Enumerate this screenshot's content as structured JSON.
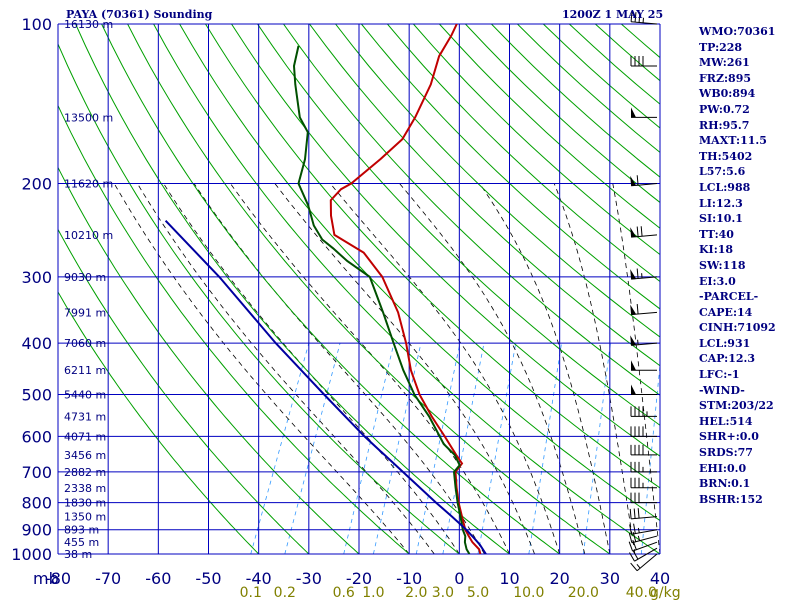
{
  "header": {
    "title": "PAYA (70361) Sounding",
    "datetime": "1200Z  1 MAY 25"
  },
  "indices": [
    "WMO:70361",
    "TP:228",
    "MW:261",
    "FRZ:895",
    "WB0:894",
    "PW:0.72",
    "RH:95.7",
    "MAXT:11.5",
    "TH:5402",
    "L57:5.6",
    "LCL:988",
    "LI:12.3",
    "SI:10.1",
    "TT:40",
    "KI:18",
    "SW:118",
    "EI:3.0",
    "-PARCEL-",
    "CAPE:14",
    "CINH:71092",
    "LCL:931",
    "CAP:12.3",
    "LFC:-1",
    "-WIND-",
    "STM:203/22",
    "HEL:514",
    "SHR+:0.0",
    "SRDS:77",
    "EHI:0.0",
    "BRN:0.1",
    "BSHR:152"
  ],
  "colors": {
    "grid": "#0000c0",
    "dry_adiabat": "#00a000",
    "moist_adiabat": "#000000",
    "mixing_ratio": "#3399ff",
    "temperature": "#c00000",
    "dewpoint": "#005000",
    "parcel": "#0000a0",
    "label": "#000080",
    "mixing_label": "#808000"
  },
  "chart_data": {
    "type": "line",
    "x_unit_label": "mb",
    "mixing_unit_label": "g/kg",
    "pressure_levels": [
      100,
      200,
      300,
      400,
      500,
      600,
      700,
      800,
      900,
      1000
    ],
    "pressure_range": [
      100,
      1000
    ],
    "temperature_ticks": [
      -80,
      -70,
      -60,
      -50,
      -40,
      -30,
      -20,
      -10,
      0,
      10,
      20,
      30,
      40
    ],
    "temperature_range": [
      -80,
      40
    ],
    "height_labels": [
      {
        "p": 100,
        "label": "16130 m"
      },
      {
        "p": 150,
        "label": "13500 m"
      },
      {
        "p": 200,
        "label": "11620 m"
      },
      {
        "p": 250,
        "label": "10210 m"
      },
      {
        "p": 300,
        "label": "9030 m"
      },
      {
        "p": 350,
        "label": "7991 m"
      },
      {
        "p": 400,
        "label": "7060 m"
      },
      {
        "p": 450,
        "label": "6211 m"
      },
      {
        "p": 500,
        "label": "5440 m"
      },
      {
        "p": 550,
        "label": "4731 m"
      },
      {
        "p": 600,
        "label": "4071 m"
      },
      {
        "p": 650,
        "label": "3456 m"
      },
      {
        "p": 700,
        "label": "2882 m"
      },
      {
        "p": 750,
        "label": "2338 m"
      },
      {
        "p": 800,
        "label": "1830 m"
      },
      {
        "p": 850,
        "label": "1350 m"
      },
      {
        "p": 900,
        "label": "893 m"
      },
      {
        "p": 950,
        "label": "455 m"
      },
      {
        "p": 1000,
        "label": "38 m"
      }
    ],
    "mixing_ratio_labels": [
      "0.1",
      "0.2",
      "0.6",
      "1.0",
      "2.0",
      "3.0",
      "5.0",
      "10.0",
      "20.0",
      "40.0"
    ],
    "mixing_ratio_values": [
      0.1,
      0.2,
      0.6,
      1.0,
      2.0,
      3.0,
      5.0,
      10.0,
      20.0,
      40.0
    ],
    "series": [
      {
        "key": "temperature",
        "points": [
          [
            1000,
            4.2
          ],
          [
            980,
            3.5
          ],
          [
            950,
            1.5
          ],
          [
            925,
            0.2
          ],
          [
            900,
            -1.1
          ],
          [
            850,
            -3.0
          ],
          [
            800,
            -5.0
          ],
          [
            750,
            -6.8
          ],
          [
            700,
            -8.5
          ],
          [
            675,
            -8.0
          ],
          [
            650,
            -10.0
          ],
          [
            600,
            -14.0
          ],
          [
            550,
            -18.5
          ],
          [
            500,
            -23.0
          ],
          [
            450,
            -27.0
          ],
          [
            400,
            -30.5
          ],
          [
            350,
            -35.0
          ],
          [
            300,
            -41.5
          ],
          [
            270,
            -47.5
          ],
          [
            250,
            -55.0
          ],
          [
            230,
            -57.5
          ],
          [
            215,
            -59.0
          ],
          [
            205,
            -58.0
          ],
          [
            200,
            -56.5
          ],
          [
            180,
            -53.0
          ],
          [
            165,
            -50.5
          ],
          [
            150,
            -50.0
          ],
          [
            130,
            -50.0
          ],
          [
            115,
            -51.0
          ],
          [
            105,
            -50.5
          ],
          [
            100,
            -50.5
          ]
        ]
      },
      {
        "key": "dewpoint",
        "points": [
          [
            1000,
            2.0
          ],
          [
            980,
            1.0
          ],
          [
            950,
            0.0
          ],
          [
            925,
            -0.5
          ],
          [
            900,
            -1.6
          ],
          [
            850,
            -3.3
          ],
          [
            800,
            -5.2
          ],
          [
            750,
            -7.0
          ],
          [
            700,
            -8.8
          ],
          [
            680,
            -8.3
          ],
          [
            650,
            -10.3
          ],
          [
            620,
            -13.5
          ],
          [
            600,
            -15.0
          ],
          [
            550,
            -19.0
          ],
          [
            500,
            -24.0
          ],
          [
            450,
            -28.5
          ],
          [
            400,
            -33.0
          ],
          [
            350,
            -38.0
          ],
          [
            300,
            -44.0
          ],
          [
            280,
            -50.0
          ],
          [
            265,
            -54.0
          ],
          [
            255,
            -57.0
          ],
          [
            240,
            -60.0
          ],
          [
            220,
            -63.0
          ],
          [
            200,
            -67.0
          ],
          [
            180,
            -68.0
          ],
          [
            160,
            -70.0
          ],
          [
            150,
            -73.0
          ],
          [
            130,
            -77.0
          ],
          [
            120,
            -79.0
          ],
          [
            110,
            -80.0
          ]
        ]
      },
      {
        "key": "parcel",
        "points": [
          [
            1000,
            5.3
          ],
          [
            960,
            3.2
          ],
          [
            940,
            1.9
          ],
          [
            900,
            -0.9
          ],
          [
            850,
            -5.0
          ],
          [
            800,
            -9.5
          ],
          [
            700,
            -19.0
          ],
          [
            600,
            -30.0
          ],
          [
            500,
            -42.0
          ],
          [
            400,
            -56.5
          ],
          [
            300,
            -74.0
          ],
          [
            235,
            -90.0
          ]
        ]
      }
    ],
    "wind_barbs": [
      {
        "p": 1000,
        "dir": 230,
        "spd": 15
      },
      {
        "p": 975,
        "dir": 240,
        "spd": 20
      },
      {
        "p": 950,
        "dir": 250,
        "spd": 20
      },
      {
        "p": 925,
        "dir": 255,
        "spd": 25
      },
      {
        "p": 900,
        "dir": 260,
        "spd": 25
      },
      {
        "p": 850,
        "dir": 265,
        "spd": 30
      },
      {
        "p": 800,
        "dir": 270,
        "spd": 30
      },
      {
        "p": 750,
        "dir": 270,
        "spd": 35
      },
      {
        "p": 700,
        "dir": 270,
        "spd": 35
      },
      {
        "p": 650,
        "dir": 270,
        "spd": 40
      },
      {
        "p": 600,
        "dir": 270,
        "spd": 40
      },
      {
        "p": 550,
        "dir": 270,
        "spd": 45
      },
      {
        "p": 500,
        "dir": 270,
        "spd": 50
      },
      {
        "p": 450,
        "dir": 270,
        "spd": 50
      },
      {
        "p": 400,
        "dir": 265,
        "spd": 55
      },
      {
        "p": 350,
        "dir": 265,
        "spd": 60
      },
      {
        "p": 300,
        "dir": 265,
        "spd": 65
      },
      {
        "p": 250,
        "dir": 265,
        "spd": 70
      },
      {
        "p": 200,
        "dir": 265,
        "spd": 60
      },
      {
        "p": 150,
        "dir": 270,
        "spd": 50
      },
      {
        "p": 120,
        "dir": 270,
        "spd": 40
      },
      {
        "p": 100,
        "dir": 275,
        "spd": 35
      }
    ]
  }
}
